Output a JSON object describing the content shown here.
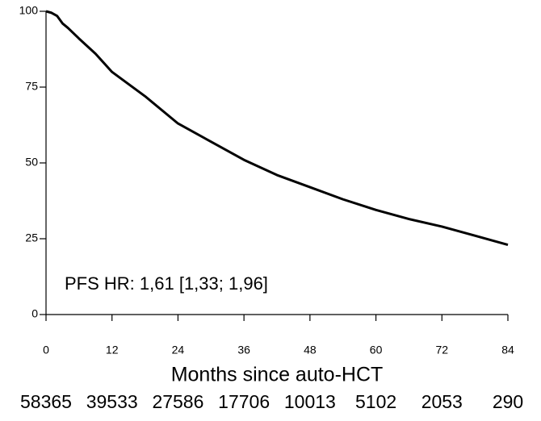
{
  "chart_data": {
    "type": "line",
    "x": [
      0,
      1,
      2,
      3,
      4,
      6,
      9,
      12,
      18,
      24,
      30,
      36,
      42,
      48,
      54,
      60,
      66,
      72,
      78,
      84
    ],
    "series": [
      {
        "color": "#000000",
        "values": [
          100,
          99.5,
          98.5,
          96,
          94.5,
          91,
          86,
          80,
          72,
          63,
          57,
          51,
          46,
          42,
          38,
          34.5,
          31.5,
          29,
          26,
          23
        ]
      }
    ],
    "xlim": [
      0,
      84
    ],
    "xticks": [
      0,
      12,
      24,
      36,
      48,
      60,
      72,
      84
    ],
    "ylim": [
      0,
      100
    ],
    "yticks": [
      0,
      25,
      50,
      75,
      100
    ],
    "xlabel": "Months since auto-HCT",
    "annotation": "PFS HR: 1,61 [1,33; 1,96]",
    "at_risk": [
      58365,
      39533,
      27586,
      17706,
      10013,
      5102,
      2053,
      290
    ]
  }
}
